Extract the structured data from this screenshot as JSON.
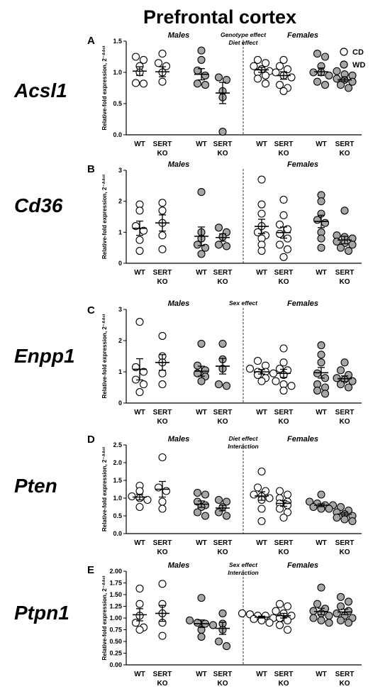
{
  "figure": {
    "title": "Prefrontal cortex",
    "legend": [
      {
        "label": "CD",
        "color": "#ffffff"
      },
      {
        "label": "WD",
        "color": "#a6a6a6"
      }
    ],
    "groups": [
      "Males",
      "Females"
    ],
    "categories": [
      "WT",
      "SERT KO",
      "WT",
      "SERT KO",
      "WT",
      "SERT KO",
      "WT",
      "SERT KO"
    ],
    "diet_order": [
      "CD",
      "CD",
      "WD",
      "WD",
      "CD",
      "CD",
      "WD",
      "WD"
    ]
  },
  "chart_data": [
    {
      "type": "scatter",
      "letter": "A",
      "gene": "Acsl1",
      "title": "",
      "effects": [
        "Genotype effect",
        "Diet effect"
      ],
      "ylabel": "Relative-fold expression, 2⁻ᐞᐞᶜᵗ",
      "ylim": [
        0,
        1.5
      ],
      "yticks": [
        0.0,
        0.5,
        1.0,
        1.5
      ],
      "series": [
        {
          "name": "CD",
          "group": "Males",
          "category": "WT",
          "values": [
            1.25,
            1.2,
            1.1,
            1.0,
            0.83,
            0.82
          ],
          "mean": 1.02,
          "sem": 0.07
        },
        {
          "name": "CD",
          "group": "Males",
          "category": "SERT KO",
          "values": [
            1.3,
            1.15,
            1.1,
            1.0,
            0.85
          ],
          "mean": 1.01,
          "sem": 0.08
        },
        {
          "name": "WD",
          "group": "Males",
          "category": "WT",
          "values": [
            1.35,
            1.2,
            1.03,
            0.95,
            0.82,
            0.8
          ],
          "mean": 0.97,
          "sem": 0.09
        },
        {
          "name": "WD",
          "group": "Males",
          "category": "SERT KO",
          "values": [
            0.92,
            0.88,
            0.7,
            0.6,
            0.05
          ],
          "mean": 0.67,
          "sem": 0.17
        },
        {
          "name": "CD",
          "group": "Females",
          "category": "WT",
          "values": [
            1.2,
            1.15,
            1.1,
            1.05,
            1.02,
            1.0,
            0.95,
            0.9,
            0.82
          ],
          "mean": 1.04,
          "sem": 0.04
        },
        {
          "name": "CD",
          "group": "Females",
          "category": "SERT KO",
          "values": [
            1.2,
            1.1,
            1.05,
            1.0,
            0.95,
            0.92,
            0.8,
            0.75,
            0.7
          ],
          "mean": 0.95,
          "sem": 0.06
        },
        {
          "name": "WD",
          "group": "Females",
          "category": "WT",
          "values": [
            1.3,
            1.25,
            1.1,
            1.0,
            1.0,
            0.95,
            0.85,
            0.8
          ],
          "mean": 1.01,
          "sem": 0.06
        },
        {
          "name": "WD",
          "group": "Females",
          "category": "SERT KO",
          "values": [
            1.02,
            0.97,
            0.95,
            0.9,
            0.88,
            0.85,
            0.8,
            0.75
          ],
          "mean": 0.88,
          "sem": 0.03
        }
      ]
    },
    {
      "type": "scatter",
      "letter": "B",
      "gene": "Cd36",
      "title": "",
      "effects": [],
      "ylabel": "Relative-fold expression, 2⁻ᐞᐞᶜᵗ",
      "ylim": [
        0,
        3
      ],
      "yticks": [
        0,
        1,
        2,
        3
      ],
      "series": [
        {
          "name": "CD",
          "group": "Males",
          "category": "WT",
          "values": [
            1.9,
            1.7,
            1.2,
            1.05,
            0.75,
            0.4
          ],
          "mean": 1.13,
          "sem": 0.23
        },
        {
          "name": "CD",
          "group": "Males",
          "category": "SERT KO",
          "values": [
            1.95,
            1.7,
            1.3,
            0.9,
            0.45
          ],
          "mean": 1.3,
          "sem": 0.26
        },
        {
          "name": "WD",
          "group": "Males",
          "category": "WT",
          "values": [
            2.3,
            1.0,
            0.8,
            0.6,
            0.5,
            0.3
          ],
          "mean": 0.87,
          "sem": 0.3
        },
        {
          "name": "WD",
          "group": "Males",
          "category": "SERT KO",
          "values": [
            1.15,
            1.0,
            0.85,
            0.6,
            0.55
          ],
          "mean": 0.83,
          "sem": 0.12
        },
        {
          "name": "CD",
          "group": "Females",
          "category": "WT",
          "values": [
            2.7,
            1.9,
            1.6,
            1.2,
            1.0,
            0.9,
            0.8,
            0.6,
            0.4
          ],
          "mean": 1.19,
          "sem": 0.23
        },
        {
          "name": "CD",
          "group": "Females",
          "category": "SERT KO",
          "values": [
            2.05,
            1.55,
            1.25,
            1.1,
            0.95,
            0.8,
            0.6,
            0.45,
            0.2
          ],
          "mean": 0.99,
          "sem": 0.18
        },
        {
          "name": "WD",
          "group": "Females",
          "category": "WT",
          "values": [
            2.2,
            2.0,
            1.6,
            1.4,
            1.3,
            1.0,
            0.8,
            0.5
          ],
          "mean": 1.35,
          "sem": 0.2
        },
        {
          "name": "WD",
          "group": "Females",
          "category": "SERT KO",
          "values": [
            1.7,
            0.9,
            0.85,
            0.8,
            0.7,
            0.65,
            0.6,
            0.5,
            0.4
          ],
          "mean": 0.75,
          "sem": 0.12
        }
      ]
    },
    {
      "type": "scatter",
      "letter": "C",
      "gene": "Enpp1",
      "title": "",
      "effects": [
        "Sex effect"
      ],
      "ylabel": "Relative-fold expression, 2⁻ᐞᐞᶜᵗ",
      "ylim": [
        0,
        3
      ],
      "yticks": [
        0,
        1,
        2,
        3
      ],
      "series": [
        {
          "name": "CD",
          "group": "Males",
          "category": "WT",
          "values": [
            2.6,
            1.15,
            1.0,
            0.75,
            0.6,
            0.35
          ],
          "mean": 1.08,
          "sem": 0.34
        },
        {
          "name": "CD",
          "group": "Males",
          "category": "SERT KO",
          "values": [
            2.15,
            1.5,
            1.3,
            0.95,
            0.6
          ],
          "mean": 1.3,
          "sem": 0.25
        },
        {
          "name": "WD",
          "group": "Males",
          "category": "WT",
          "values": [
            1.9,
            1.2,
            1.05,
            0.95,
            0.85,
            0.7
          ],
          "mean": 1.02,
          "sem": 0.16
        },
        {
          "name": "WD",
          "group": "Males",
          "category": "SERT KO",
          "values": [
            1.9,
            1.4,
            1.1,
            0.6,
            0.55
          ],
          "mean": 1.18,
          "sem": 0.25
        },
        {
          "name": "CD",
          "group": "Females",
          "category": "WT",
          "values": [
            1.35,
            1.2,
            1.1,
            1.0,
            1.0,
            0.95,
            0.9,
            0.8,
            0.7
          ],
          "mean": 1.0,
          "sem": 0.07
        },
        {
          "name": "CD",
          "group": "Females",
          "category": "SERT KO",
          "values": [
            1.75,
            1.3,
            1.1,
            1.05,
            0.9,
            0.7,
            0.6,
            0.55,
            0.4
          ],
          "mean": 0.95,
          "sem": 0.13
        },
        {
          "name": "WD",
          "group": "Females",
          "category": "WT",
          "values": [
            1.85,
            1.55,
            1.3,
            0.95,
            0.8,
            0.6,
            0.5,
            0.4,
            0.3
          ],
          "mean": 0.97,
          "sem": 0.17
        },
        {
          "name": "WD",
          "group": "Females",
          "category": "SERT KO",
          "values": [
            1.3,
            1.05,
            0.9,
            0.8,
            0.75,
            0.7,
            0.6,
            0.5
          ],
          "mean": 0.78,
          "sem": 0.09
        }
      ]
    },
    {
      "type": "scatter",
      "letter": "D",
      "gene": "Pten",
      "title": "",
      "effects": [
        "Diet effect",
        "Interaction"
      ],
      "ylabel": "Relative-fold expression, 2⁻ᐞᐞᶜᵗ",
      "ylim": [
        0,
        2.5
      ],
      "yticks": [
        0.0,
        0.5,
        1.0,
        1.5,
        2.0,
        2.5
      ],
      "series": [
        {
          "name": "CD",
          "group": "Males",
          "category": "WT",
          "values": [
            1.35,
            1.2,
            1.05,
            1.0,
            0.95,
            0.75
          ],
          "mean": 1.03,
          "sem": 0.08
        },
        {
          "name": "CD",
          "group": "Males",
          "category": "SERT KO",
          "values": [
            2.15,
            1.3,
            1.2,
            0.9,
            0.7
          ],
          "mean": 1.25,
          "sem": 0.22
        },
        {
          "name": "WD",
          "group": "Males",
          "category": "WT",
          "values": [
            1.15,
            1.1,
            0.9,
            0.8,
            0.75,
            0.6,
            0.5
          ],
          "mean": 0.83,
          "sem": 0.09
        },
        {
          "name": "WD",
          "group": "Males",
          "category": "SERT KO",
          "values": [
            0.95,
            0.9,
            0.75,
            0.6,
            0.5
          ],
          "mean": 0.72,
          "sem": 0.08
        },
        {
          "name": "CD",
          "group": "Females",
          "category": "WT",
          "values": [
            1.75,
            1.3,
            1.2,
            1.1,
            1.05,
            1.0,
            0.95,
            0.7,
            0.35
          ],
          "mean": 1.06,
          "sem": 0.12
        },
        {
          "name": "CD",
          "group": "Females",
          "category": "SERT KO",
          "values": [
            1.2,
            1.1,
            1.0,
            0.9,
            0.85,
            0.8,
            0.7,
            0.6,
            0.45
          ],
          "mean": 0.85,
          "sem": 0.08
        },
        {
          "name": "WD",
          "group": "Females",
          "category": "WT",
          "values": [
            1.1,
            0.9,
            0.85,
            0.8,
            0.8,
            0.75,
            0.7,
            0.7
          ],
          "mean": 0.8,
          "sem": 0.04
        },
        {
          "name": "WD",
          "group": "Females",
          "category": "SERT KO",
          "values": [
            0.75,
            0.65,
            0.6,
            0.55,
            0.5,
            0.45,
            0.4,
            0.35
          ],
          "mean": 0.55,
          "sem": 0.05
        }
      ]
    },
    {
      "type": "scatter",
      "letter": "E",
      "gene": "Ptpn1",
      "title": "",
      "effects": [
        "Sex effect",
        "Interaction"
      ],
      "ylabel": "Relative-fold expression, 2⁻ᐞᐞᶜᵗ",
      "ylim": [
        0,
        2
      ],
      "yticks": [
        0.0,
        0.25,
        0.5,
        0.75,
        1.0,
        1.25,
        1.5,
        1.75,
        2.0
      ],
      "series": [
        {
          "name": "CD",
          "group": "Males",
          "category": "WT",
          "values": [
            1.63,
            1.3,
            1.05,
            0.9,
            0.8,
            0.75
          ],
          "mean": 1.07,
          "sem": 0.13
        },
        {
          "name": "CD",
          "group": "Males",
          "category": "SERT KO",
          "values": [
            1.73,
            1.3,
            1.1,
            0.9,
            0.62
          ],
          "mean": 1.1,
          "sem": 0.17
        },
        {
          "name": "WD",
          "group": "Males",
          "category": "WT",
          "values": [
            1.43,
            0.95,
            0.9,
            0.88,
            0.85,
            0.75,
            0.6
          ],
          "mean": 0.88,
          "sem": 0.08
        },
        {
          "name": "WD",
          "group": "Males",
          "category": "SERT KO",
          "values": [
            1.1,
            0.88,
            0.75,
            0.5,
            0.4
          ],
          "mean": 0.78,
          "sem": 0.13
        },
        {
          "name": "CD",
          "group": "Females",
          "category": "WT",
          "values": [
            1.1,
            1.08,
            1.05,
            1.05,
            1.0,
            1.0,
            0.98,
            0.95,
            0.9
          ],
          "mean": 1.02,
          "sem": 0.02
        },
        {
          "name": "CD",
          "group": "Females",
          "category": "SERT KO",
          "values": [
            1.3,
            1.25,
            1.15,
            1.1,
            1.05,
            1.0,
            0.95,
            0.85,
            0.75
          ],
          "mean": 1.05,
          "sem": 0.05
        },
        {
          "name": "WD",
          "group": "Females",
          "category": "WT",
          "values": [
            1.65,
            1.3,
            1.2,
            1.15,
            1.1,
            1.05,
            1.0,
            0.95,
            0.9
          ],
          "mean": 1.14,
          "sem": 0.07
        },
        {
          "name": "WD",
          "group": "Females",
          "category": "SERT KO",
          "values": [
            1.45,
            1.35,
            1.25,
            1.15,
            1.1,
            1.05,
            1.0,
            0.95,
            0.9
          ],
          "mean": 1.13,
          "sem": 0.06
        }
      ]
    }
  ]
}
